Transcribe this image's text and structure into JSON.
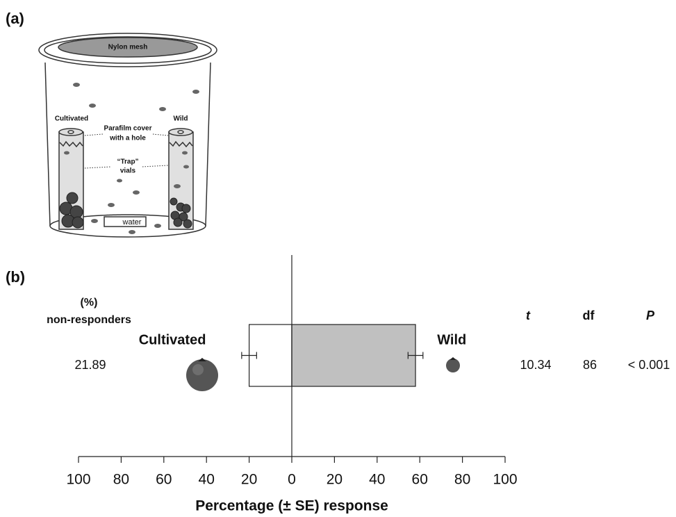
{
  "panel_a": {
    "label": "(a)",
    "lid_label": "Nylon mesh",
    "left_label": "Cultivated",
    "right_label": "Wild",
    "cover_label": [
      "Parafilm cover",
      "with a hole"
    ],
    "trap_label": [
      "“Trap”",
      "vials"
    ],
    "water_label": "water"
  },
  "panel_b": {
    "label": "(b)",
    "nonresp_header": [
      "(%)",
      "non-responders"
    ],
    "nonresp_value": 21.89,
    "stats_headers": [
      "t",
      "df",
      "P"
    ],
    "stats_values": [
      10.34,
      86,
      "< 0.001"
    ]
  },
  "chart_data": {
    "type": "hbar-diverging",
    "xlabel": "Percentage (± SE) response",
    "categories": [
      "Cultivated",
      "Wild"
    ],
    "values": [
      -20,
      58
    ],
    "errors": [
      3.5,
      3.5
    ],
    "colors": [
      "#ffffff",
      "#c0c0c0"
    ],
    "xlim": [
      -100,
      100
    ],
    "xticks": [
      {
        "value": -100,
        "label": "100"
      },
      {
        "value": -80,
        "label": "80"
      },
      {
        "value": -60,
        "label": "60"
      },
      {
        "value": -40,
        "label": "40"
      },
      {
        "value": -20,
        "label": "20"
      },
      0,
      20,
      40,
      60,
      80,
      100
    ]
  }
}
